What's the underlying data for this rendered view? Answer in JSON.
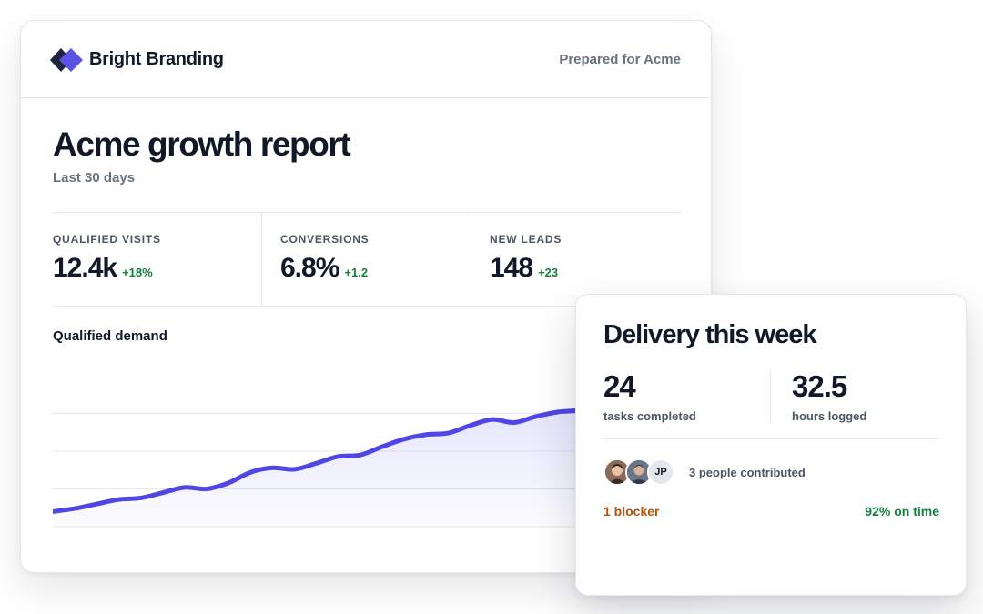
{
  "report": {
    "brand": "Bright Branding",
    "prepared_for": "Prepared for Acme",
    "title": "Acme growth report",
    "subtitle": "Last 30 days",
    "metrics": [
      {
        "label": "QUALIFIED VISITS",
        "value": "12.4k",
        "delta": "+18%"
      },
      {
        "label": "CONVERSIONS",
        "value": "6.8%",
        "delta": "+1.2"
      },
      {
        "label": "NEW LEADS",
        "value": "148",
        "delta": "+23"
      }
    ],
    "chart_title": "Qualified demand"
  },
  "colors": {
    "accent": "#4f46e5",
    "accent_light": "#6366f1",
    "positive": "#15803d",
    "warning": "#b45309",
    "muted_text": "#6b7280"
  },
  "icons": {
    "logo": "bright-branding-diamond-logo"
  },
  "delivery": {
    "title": "Delivery this week",
    "stats": [
      {
        "value": "24",
        "label": "tasks completed"
      },
      {
        "value": "32.5",
        "label": "hours logged"
      }
    ],
    "avatars": [
      {
        "name": "avatar-photo-1"
      },
      {
        "name": "avatar-photo-2"
      },
      {
        "initials": "JP"
      }
    ],
    "contributors": "3 people contributed",
    "blocker": "1 blocker",
    "on_time": "92% on time"
  },
  "chart_data": {
    "type": "area",
    "title": "Qualified demand",
    "xlabel": "",
    "ylabel": "",
    "x": [
      1,
      2,
      3,
      4,
      5,
      6,
      7,
      8,
      9,
      10,
      11,
      12,
      13,
      14,
      15,
      16,
      17,
      18,
      19,
      20,
      21,
      22,
      23,
      24,
      25,
      26,
      27,
      28,
      29,
      30
    ],
    "series": [
      {
        "values": [
          2.0,
          2.4,
          3.0,
          3.6,
          3.8,
          4.5,
          5.2,
          5.0,
          5.8,
          7.2,
          7.8,
          7.6,
          8.4,
          9.3,
          9.5,
          10.6,
          11.6,
          12.2,
          12.4,
          13.4,
          14.2,
          13.8,
          14.6,
          15.2,
          15.4,
          15.8,
          16.2,
          16.6,
          17.0,
          17.4
        ]
      }
    ],
    "ylim": [
      0,
      20
    ],
    "gridlines": true,
    "legend": "none"
  }
}
